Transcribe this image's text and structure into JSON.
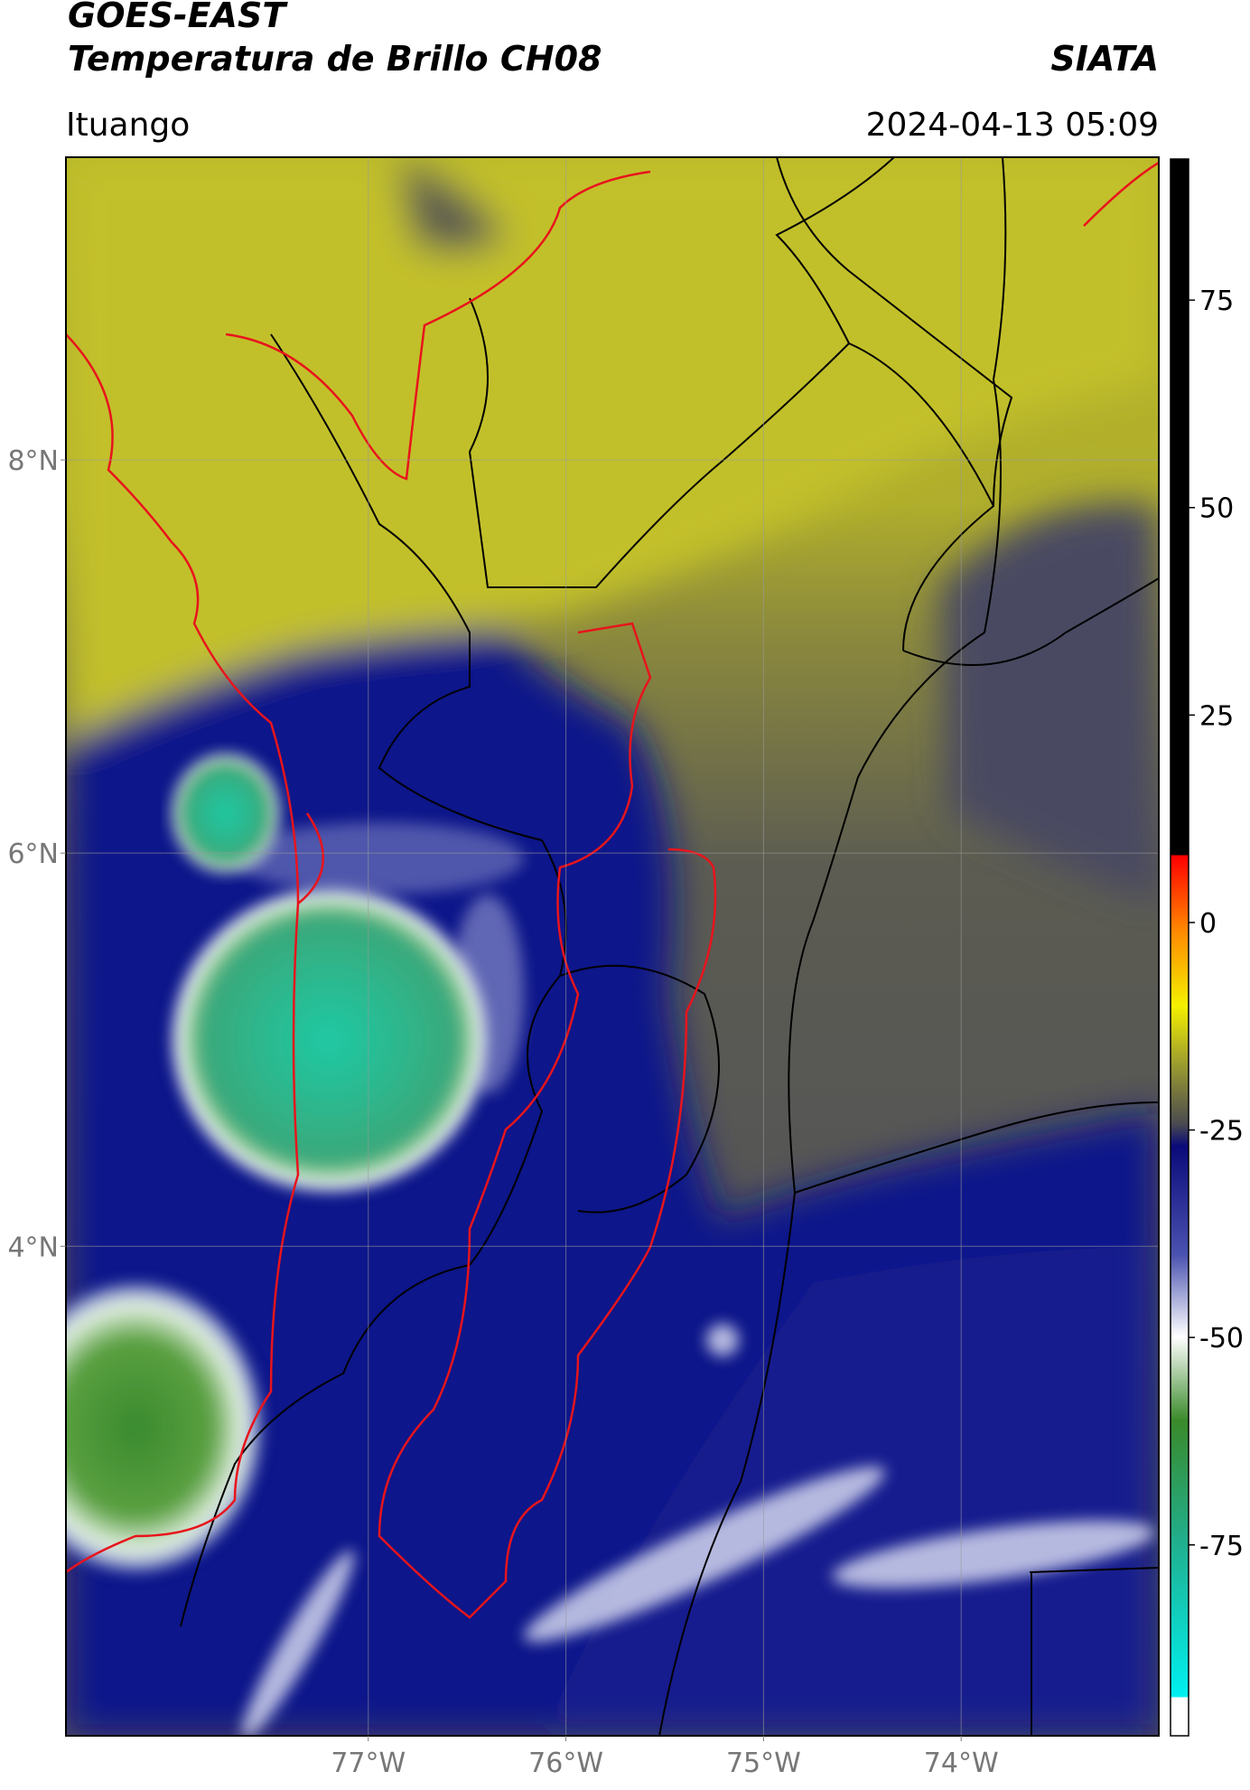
{
  "header": {
    "title_line1": "GOES-EAST",
    "title_line2": "Temperatura de Brillo CH08",
    "brand": "SIATA",
    "location": "Ituango",
    "datetime": "2024-04-13 05:09"
  },
  "map": {
    "xlim": [
      -78.53,
      -73.0
    ],
    "ylim": [
      1.51,
      9.54
    ],
    "xticks": [
      {
        "value": -77,
        "label": "77°W"
      },
      {
        "value": -76,
        "label": "76°W"
      },
      {
        "value": -75,
        "label": "75°W"
      },
      {
        "value": -74,
        "label": "74°W"
      }
    ],
    "yticks": [
      {
        "value": 4,
        "label": "4°N"
      },
      {
        "value": 6,
        "label": "6°N"
      },
      {
        "value": 8,
        "label": "8°N"
      }
    ],
    "grid": true
  },
  "colorbar": {
    "lim": [
      -98,
      92
    ],
    "ticks": [
      -75,
      -50,
      -25,
      0,
      25,
      50,
      75
    ]
  }
}
